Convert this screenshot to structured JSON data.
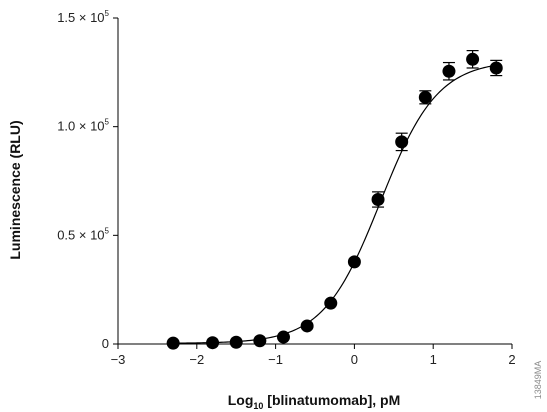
{
  "chart_data": {
    "type": "scatter",
    "xlabel": {
      "main": "Log",
      "subscript": "10",
      "rest": " [blinatumomab], pM"
    },
    "ylabel": "Luminescence (RLU)",
    "xlim": [
      -3,
      2
    ],
    "ylim": [
      0,
      150000
    ],
    "x_ticks": [
      {
        "value": -3,
        "label": "−3"
      },
      {
        "value": -2,
        "label": "−2"
      },
      {
        "value": -1,
        "label": "−1"
      },
      {
        "value": 0,
        "label": "0"
      },
      {
        "value": 1,
        "label": "1"
      },
      {
        "value": 2,
        "label": "2"
      }
    ],
    "y_ticks": [
      {
        "value": 0,
        "label": "0",
        "exponent": ""
      },
      {
        "value": 50000,
        "label": "0.5 × 10",
        "exponent": "5"
      },
      {
        "value": 100000,
        "label": "1.0 × 10",
        "exponent": "5"
      },
      {
        "value": 150000,
        "label": "1.5 × 10",
        "exponent": "5"
      }
    ],
    "grid": false,
    "legend": "none",
    "marker_color": "#000000",
    "points": [
      {
        "x": -2.3,
        "y": 400,
        "err": 0
      },
      {
        "x": -1.8,
        "y": 600,
        "err": 0
      },
      {
        "x": -1.5,
        "y": 800,
        "err": 0
      },
      {
        "x": -1.2,
        "y": 1500,
        "err": 0
      },
      {
        "x": -0.9,
        "y": 3200,
        "err": 0
      },
      {
        "x": -0.6,
        "y": 8300,
        "err": 0
      },
      {
        "x": -0.3,
        "y": 18800,
        "err": 0
      },
      {
        "x": 0.0,
        "y": 37800,
        "err": 0
      },
      {
        "x": 0.3,
        "y": 66500,
        "err": 3500
      },
      {
        "x": 0.6,
        "y": 93000,
        "err": 4000
      },
      {
        "x": 0.9,
        "y": 113500,
        "err": 3000
      },
      {
        "x": 1.2,
        "y": 125500,
        "err": 4000
      },
      {
        "x": 1.5,
        "y": 131000,
        "err": 4000
      },
      {
        "x": 1.8,
        "y": 127000,
        "err": 3500
      }
    ],
    "fit": {
      "model": "4PL",
      "bottom": 300,
      "top": 130500,
      "log_ec50": 0.33,
      "hill": 1.2,
      "x_range": [
        -2.3,
        1.8
      ]
    }
  },
  "side_code": "13849MA"
}
